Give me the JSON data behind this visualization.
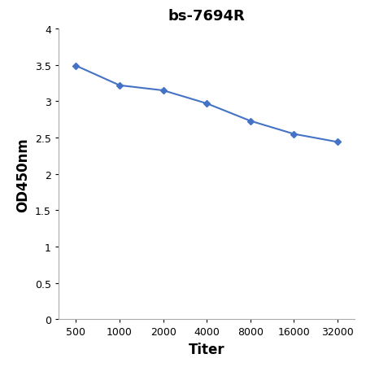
{
  "title": "bs-7694R",
  "xlabel": "Titer",
  "ylabel": "OD450nm",
  "x_values": [
    500,
    1000,
    2000,
    4000,
    8000,
    16000,
    32000
  ],
  "y_values": [
    3.49,
    3.22,
    3.15,
    2.97,
    2.73,
    2.55,
    2.44
  ],
  "line_color": "#4472C4",
  "marker": "D",
  "marker_size": 4,
  "ylim": [
    0,
    4.0
  ],
  "yticks": [
    0,
    0.5,
    1,
    1.5,
    2,
    2.5,
    3,
    3.5,
    4
  ],
  "ytick_labels": [
    "0",
    "0.5",
    "1",
    "1.5",
    "2",
    "2.5",
    "3",
    "3.5",
    "4"
  ],
  "xtick_labels": [
    "500",
    "1000",
    "2000",
    "4000",
    "8000",
    "16000",
    "32000"
  ],
  "title_fontsize": 13,
  "axis_label_fontsize": 12,
  "tick_fontsize": 9,
  "background_color": "#ffffff",
  "spine_color": "#aaaaaa",
  "linewidth": 1.5
}
